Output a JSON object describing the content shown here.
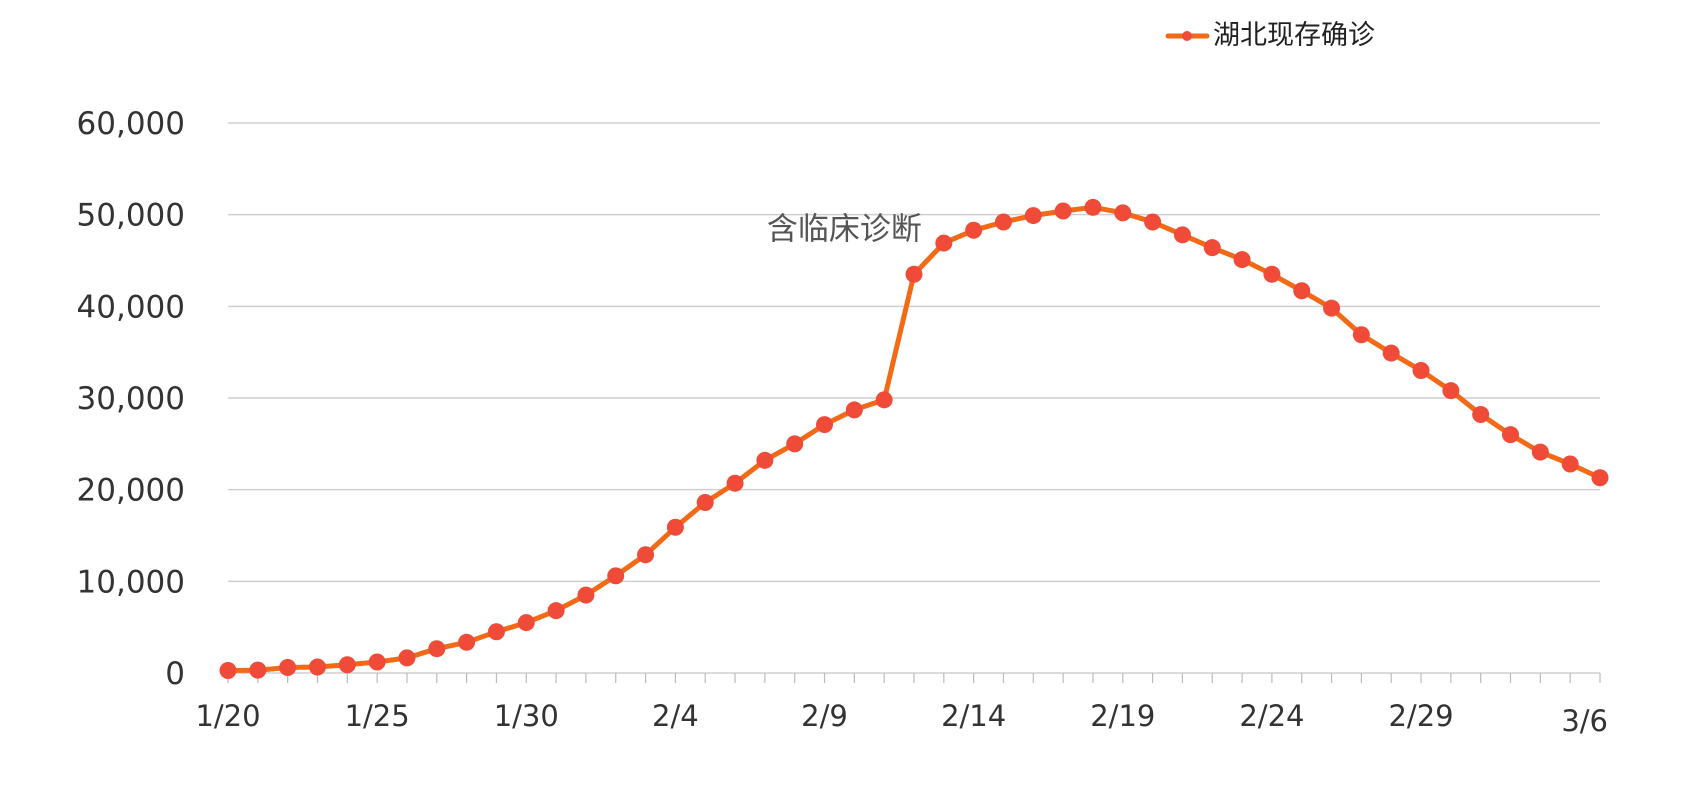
{
  "chart_data": {
    "type": "line",
    "title": "",
    "xlabel": "",
    "ylabel": "",
    "ylim": [
      0,
      60000
    ],
    "yticks": [
      0,
      10000,
      20000,
      30000,
      40000,
      50000,
      60000
    ],
    "ytick_labels": [
      "0",
      "10,000",
      "20,000",
      "30,000",
      "40,000",
      "50,000",
      "60,000"
    ],
    "xtick_labels": [
      {
        "label": "1/20",
        "index": 0
      },
      {
        "label": "1/25",
        "index": 5
      },
      {
        "label": "1/30",
        "index": 10
      },
      {
        "label": "2/4",
        "index": 15
      },
      {
        "label": "2/9",
        "index": 20
      },
      {
        "label": "2/14",
        "index": 25
      },
      {
        "label": "2/19",
        "index": 30
      },
      {
        "label": "2/24",
        "index": 35
      },
      {
        "label": "2/29",
        "index": 40
      },
      {
        "label": "3/6",
        "index": 46
      }
    ],
    "grid": true,
    "legend_position": "top-right",
    "annotation": {
      "text": "含临床诊断",
      "x_index": 21.0,
      "y_value": 47500
    },
    "series": [
      {
        "name": "湖北现存确诊",
        "line_color": "#f26a16",
        "marker_color": "#ef4b38",
        "x": [
          "1/20",
          "1/21",
          "1/22",
          "1/23",
          "1/24",
          "1/25",
          "1/26",
          "1/27",
          "1/28",
          "1/29",
          "1/30",
          "1/31",
          "2/1",
          "2/2",
          "2/3",
          "2/4",
          "2/5",
          "2/6",
          "2/7",
          "2/8",
          "2/9",
          "2/10",
          "2/11",
          "2/12",
          "2/13",
          "2/14",
          "2/15",
          "2/16",
          "2/17",
          "2/18",
          "2/19",
          "2/20",
          "2/21",
          "2/22",
          "2/23",
          "2/24",
          "2/25",
          "2/26",
          "2/27",
          "2/28",
          "2/29",
          "3/1",
          "3/2",
          "3/3",
          "3/4",
          "3/5",
          "3/6"
        ],
        "values": [
          270,
          310,
          600,
          650,
          900,
          1200,
          1650,
          2650,
          3350,
          4500,
          5500,
          6800,
          8500,
          10600,
          12900,
          15900,
          18600,
          20700,
          23200,
          25000,
          27100,
          28700,
          29800,
          43500,
          46900,
          48300,
          49200,
          49900,
          50400,
          50800,
          50200,
          49200,
          47800,
          46400,
          45100,
          43500,
          41700,
          39800,
          36900,
          34900,
          33000,
          30800,
          28200,
          26000,
          24100,
          22800,
          21300
        ]
      }
    ]
  }
}
